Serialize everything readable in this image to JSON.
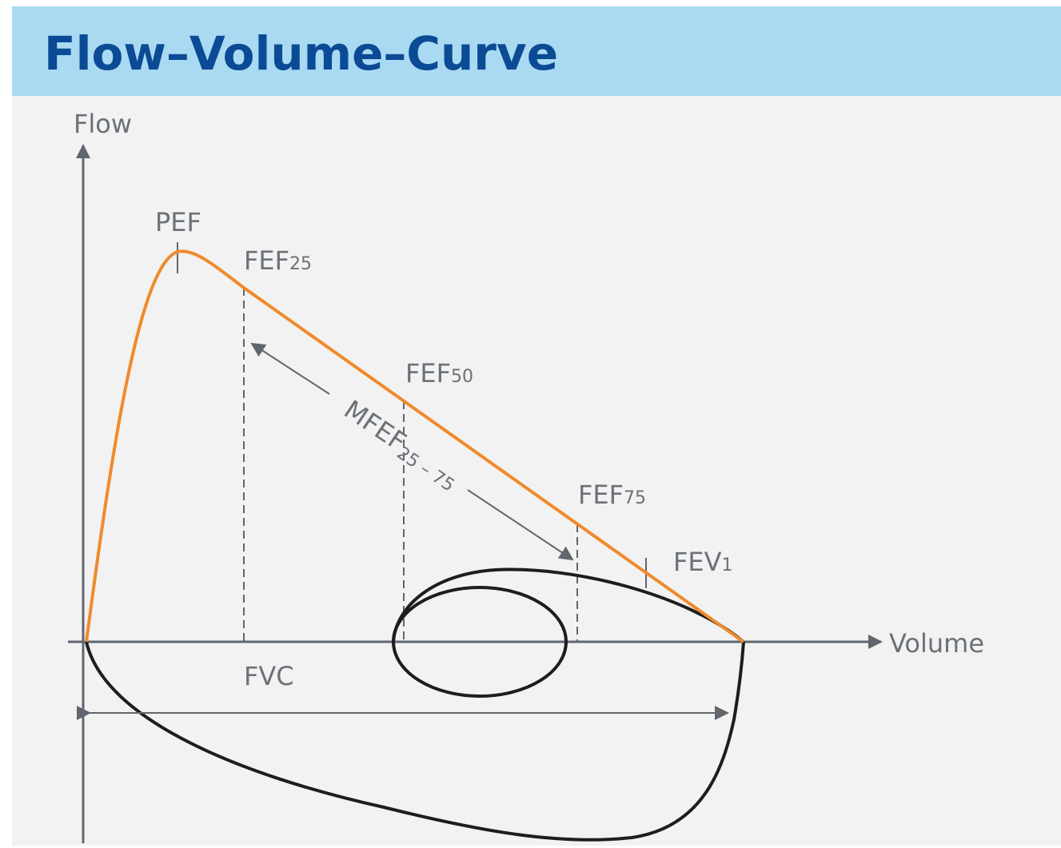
{
  "header": {
    "title": "Flow–Volume–Curve"
  },
  "axes": {
    "y": "Flow",
    "x": "Volume"
  },
  "markers": {
    "pef": {
      "main": "PEF"
    },
    "fef25": {
      "main": "FEF",
      "sub": "25"
    },
    "fef50": {
      "main": "FEF",
      "sub": "50"
    },
    "fef75": {
      "main": "FEF",
      "sub": "75"
    },
    "fev1": {
      "main": "FEV",
      "sub": "1"
    },
    "mfef": {
      "main": "MFEF",
      "sub": "25 – 75"
    },
    "fvc": {
      "main": "FVC"
    }
  }
}
